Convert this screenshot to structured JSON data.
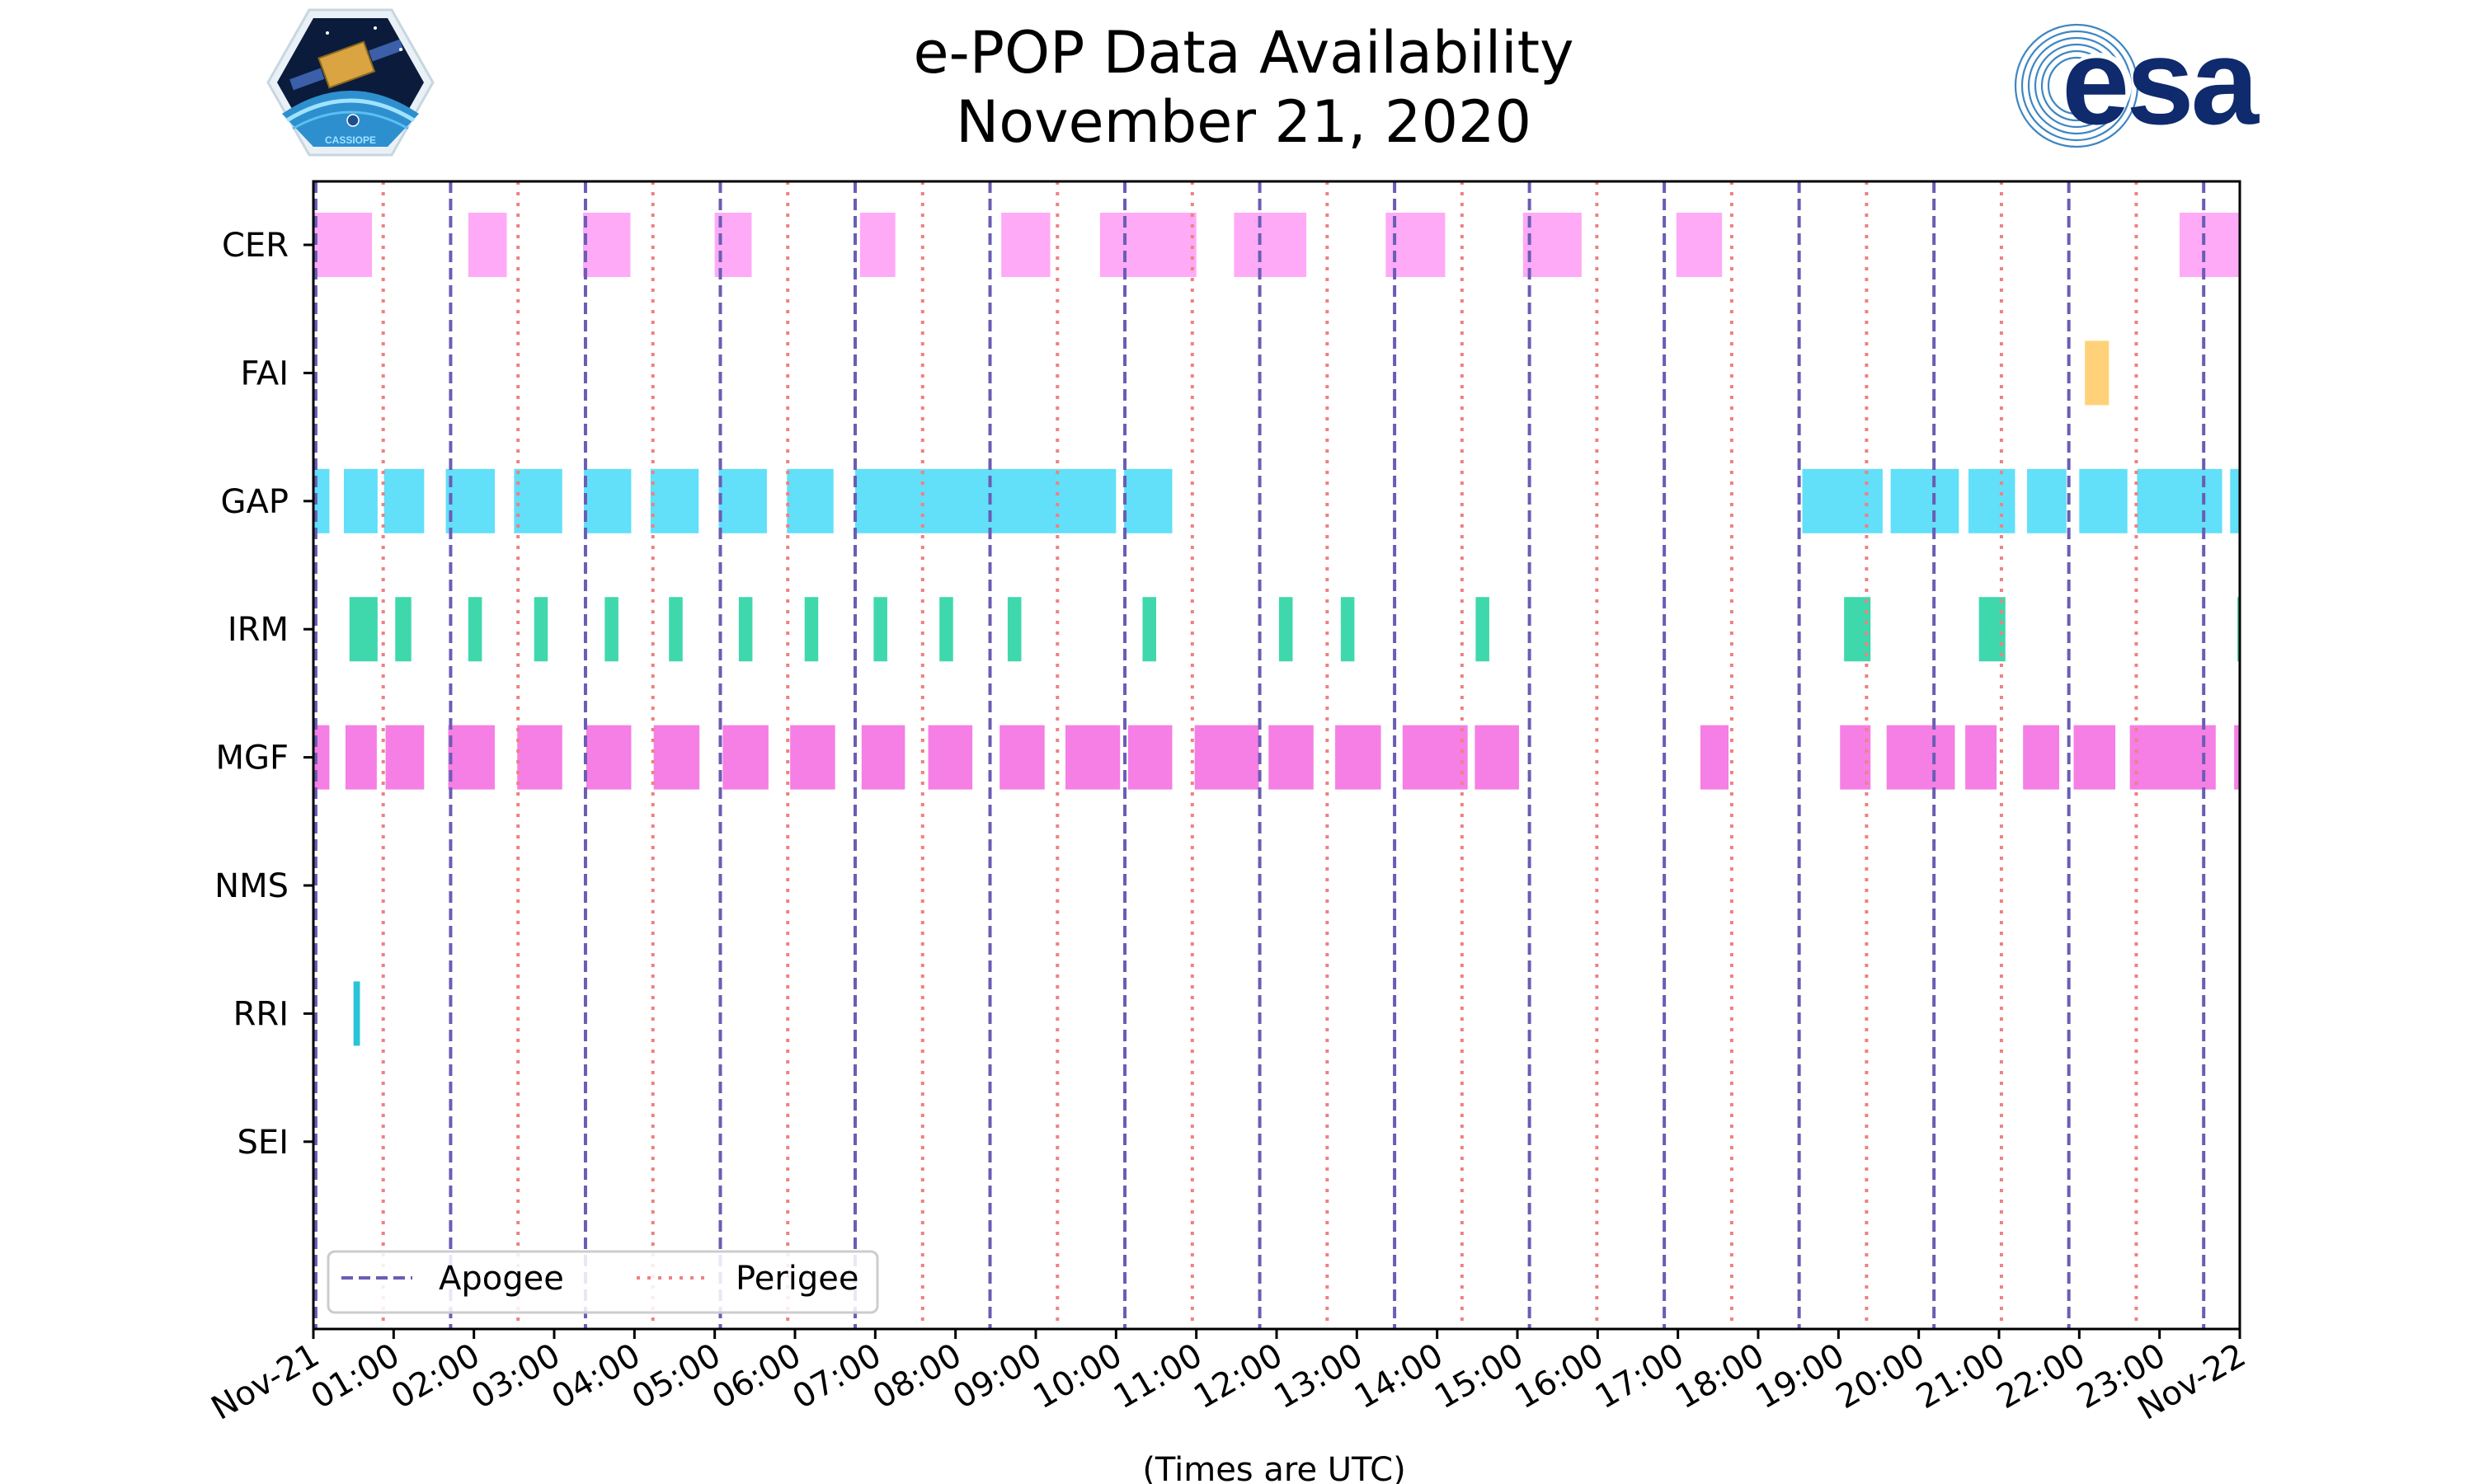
{
  "chart_data": {
    "type": "timeline",
    "title": "e-POP Data Availability",
    "subtitle": "November 21, 2020",
    "xlabel": "(Times are UTC)",
    "xlim_hours": [
      0,
      24
    ],
    "x_tick_labels": [
      "Nov-21",
      "01:00",
      "02:00",
      "03:00",
      "04:00",
      "05:00",
      "06:00",
      "07:00",
      "08:00",
      "09:00",
      "10:00",
      "11:00",
      "12:00",
      "13:00",
      "14:00",
      "15:00",
      "16:00",
      "17:00",
      "18:00",
      "19:00",
      "20:00",
      "21:00",
      "22:00",
      "23:00",
      "Nov-22"
    ],
    "instruments": [
      "CER",
      "FAI",
      "GAP",
      "IRM",
      "MGF",
      "NMS",
      "RRI",
      "SEI"
    ],
    "colors": {
      "CER": "#ffaaf6",
      "FAI": "#ffd27a",
      "GAP": "#62dff9",
      "IRM": "#3fd8ad",
      "MGF": "#f57fe4",
      "RRI": "#2bc3d8",
      "apogee": "#6a5db5",
      "perigee": "#f08080"
    },
    "apogee_hours": [
      0.03,
      1.71,
      3.39,
      5.07,
      6.75,
      8.43,
      10.11,
      11.79,
      13.47,
      15.15,
      16.83,
      18.51,
      20.19,
      21.87,
      23.55
    ],
    "perigee_hours": [
      0.87,
      2.55,
      4.23,
      5.91,
      7.59,
      9.27,
      10.95,
      12.63,
      14.31,
      15.99,
      17.67,
      19.35,
      21.03,
      22.71
    ],
    "series": [
      {
        "name": "CER",
        "intervals": [
          [
            0.0,
            0.73
          ],
          [
            1.93,
            2.41
          ],
          [
            3.36,
            3.95
          ],
          [
            5.0,
            5.46
          ],
          [
            6.81,
            7.25
          ],
          [
            8.57,
            9.18
          ],
          [
            9.8,
            11.0
          ],
          [
            11.47,
            12.37
          ],
          [
            13.36,
            14.1
          ],
          [
            15.07,
            15.8
          ],
          [
            16.98,
            17.55
          ],
          [
            23.25,
            24.0
          ]
        ]
      },
      {
        "name": "FAI",
        "intervals": [
          [
            22.07,
            22.37
          ]
        ]
      },
      {
        "name": "GAP",
        "intervals": [
          [
            0.0,
            0.2
          ],
          [
            0.38,
            0.8
          ],
          [
            0.88,
            1.38
          ],
          [
            1.65,
            2.26
          ],
          [
            2.5,
            3.1
          ],
          [
            3.37,
            3.96
          ],
          [
            4.2,
            4.8
          ],
          [
            5.05,
            5.65
          ],
          [
            5.9,
            6.48
          ],
          [
            6.75,
            10.0
          ],
          [
            10.1,
            10.7
          ],
          [
            18.55,
            19.55
          ],
          [
            19.65,
            20.5
          ],
          [
            20.62,
            21.2
          ],
          [
            21.35,
            21.84
          ],
          [
            22.0,
            22.6
          ],
          [
            22.72,
            23.78
          ],
          [
            23.88,
            24.0
          ]
        ]
      },
      {
        "name": "IRM",
        "intervals": [
          [
            0.45,
            0.8
          ],
          [
            1.02,
            1.22
          ],
          [
            1.93,
            2.1
          ],
          [
            2.75,
            2.92
          ],
          [
            3.63,
            3.8
          ],
          [
            4.43,
            4.6
          ],
          [
            5.3,
            5.47
          ],
          [
            6.12,
            6.29
          ],
          [
            6.98,
            7.15
          ],
          [
            7.8,
            7.97
          ],
          [
            8.65,
            8.82
          ],
          [
            10.33,
            10.5
          ],
          [
            12.03,
            12.2
          ],
          [
            12.8,
            12.97
          ],
          [
            14.48,
            14.65
          ],
          [
            19.07,
            19.4
          ],
          [
            20.75,
            21.08
          ],
          [
            23.97,
            24.0
          ]
        ]
      },
      {
        "name": "MGF",
        "intervals": [
          [
            0.0,
            0.2
          ],
          [
            0.4,
            0.79
          ],
          [
            0.9,
            1.38
          ],
          [
            1.68,
            2.26
          ],
          [
            2.54,
            3.1
          ],
          [
            3.4,
            3.96
          ],
          [
            4.24,
            4.81
          ],
          [
            5.1,
            5.67
          ],
          [
            5.94,
            6.5
          ],
          [
            6.83,
            7.37
          ],
          [
            7.66,
            8.21
          ],
          [
            8.55,
            9.11
          ],
          [
            9.37,
            10.05
          ],
          [
            10.15,
            10.7
          ],
          [
            10.98,
            11.78
          ],
          [
            11.9,
            12.46
          ],
          [
            12.73,
            13.3
          ],
          [
            13.57,
            14.38
          ],
          [
            14.47,
            15.02
          ],
          [
            17.28,
            17.63
          ],
          [
            19.02,
            19.4
          ],
          [
            19.6,
            20.45
          ],
          [
            20.58,
            20.97
          ],
          [
            21.3,
            21.75
          ],
          [
            21.93,
            22.45
          ],
          [
            22.63,
            23.7
          ],
          [
            23.93,
            24.0
          ]
        ]
      },
      {
        "name": "NMS",
        "intervals": []
      },
      {
        "name": "RRI",
        "intervals": [
          [
            0.5,
            0.58
          ]
        ]
      },
      {
        "name": "SEI",
        "intervals": []
      }
    ],
    "legend": [
      {
        "label": "Apogee",
        "style": "dashed",
        "color_key": "apogee"
      },
      {
        "label": "Perigee",
        "style": "dotted",
        "color_key": "perigee"
      }
    ],
    "legend_position": "lower-left",
    "logos": {
      "left": "CASSIOPE",
      "right": "esa"
    }
  }
}
